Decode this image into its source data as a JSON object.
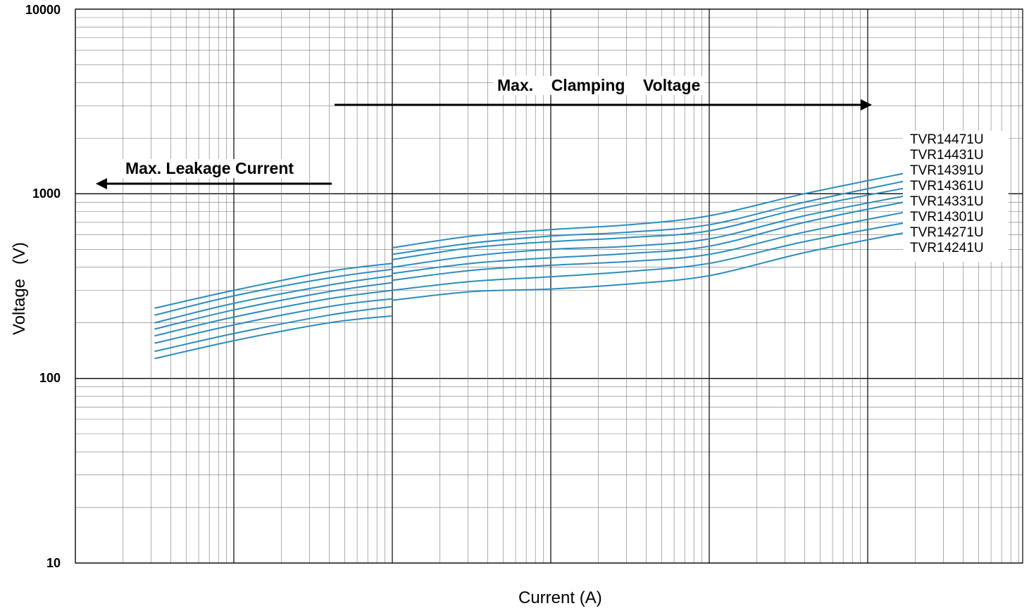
{
  "chart_data": {
    "type": "line",
    "title": "",
    "xlabel": "Current (A)",
    "ylabel": "Voltage   (V)",
    "y_scale": "log",
    "ylim": [
      10,
      10000
    ],
    "y_ticks": [
      "10",
      "100",
      "1000",
      "10000"
    ],
    "x_scale": "log",
    "x_tick_labels": [],
    "grid": true,
    "legend": "right",
    "annotations": {
      "leakage": "Max. Leakage Current",
      "clamping": "Max.    Clamping    Voltage"
    },
    "series": [
      {
        "name": "TVR14471U",
        "segments": [
          [
            240,
            300,
            380,
            420
          ],
          [
            510,
            590,
            640,
            680,
            760,
            1000,
            1300
          ]
        ]
      },
      {
        "name": "TVR14431U",
        "segments": [
          [
            220,
            280,
            350,
            390
          ],
          [
            470,
            540,
            590,
            620,
            680,
            900,
            1180
          ]
        ]
      },
      {
        "name": "TVR14391U",
        "segments": [
          [
            200,
            255,
            320,
            360
          ],
          [
            440,
            510,
            550,
            580,
            630,
            840,
            1080
          ]
        ]
      },
      {
        "name": "TVR14361U",
        "segments": [
          [
            185,
            235,
            295,
            330
          ],
          [
            400,
            460,
            500,
            520,
            570,
            760,
            980
          ]
        ]
      },
      {
        "name": "TVR14331U",
        "segments": [
          [
            170,
            215,
            270,
            300
          ],
          [
            370,
            420,
            450,
            475,
            520,
            700,
            910
          ]
        ]
      },
      {
        "name": "TVR14301U",
        "segments": [
          [
            155,
            195,
            245,
            270
          ],
          [
            340,
            385,
            410,
            430,
            470,
            620,
            800
          ]
        ]
      },
      {
        "name": "TVR14271U",
        "segments": [
          [
            140,
            175,
            220,
            245
          ],
          [
            300,
            335,
            355,
            380,
            420,
            550,
            700
          ]
        ]
      },
      {
        "name": "TVR14241U",
        "segments": [
          [
            128,
            160,
            200,
            218
          ],
          [
            265,
            295,
            305,
            325,
            360,
            480,
            620
          ]
        ]
      }
    ],
    "line_color": "#2b8cbf"
  }
}
